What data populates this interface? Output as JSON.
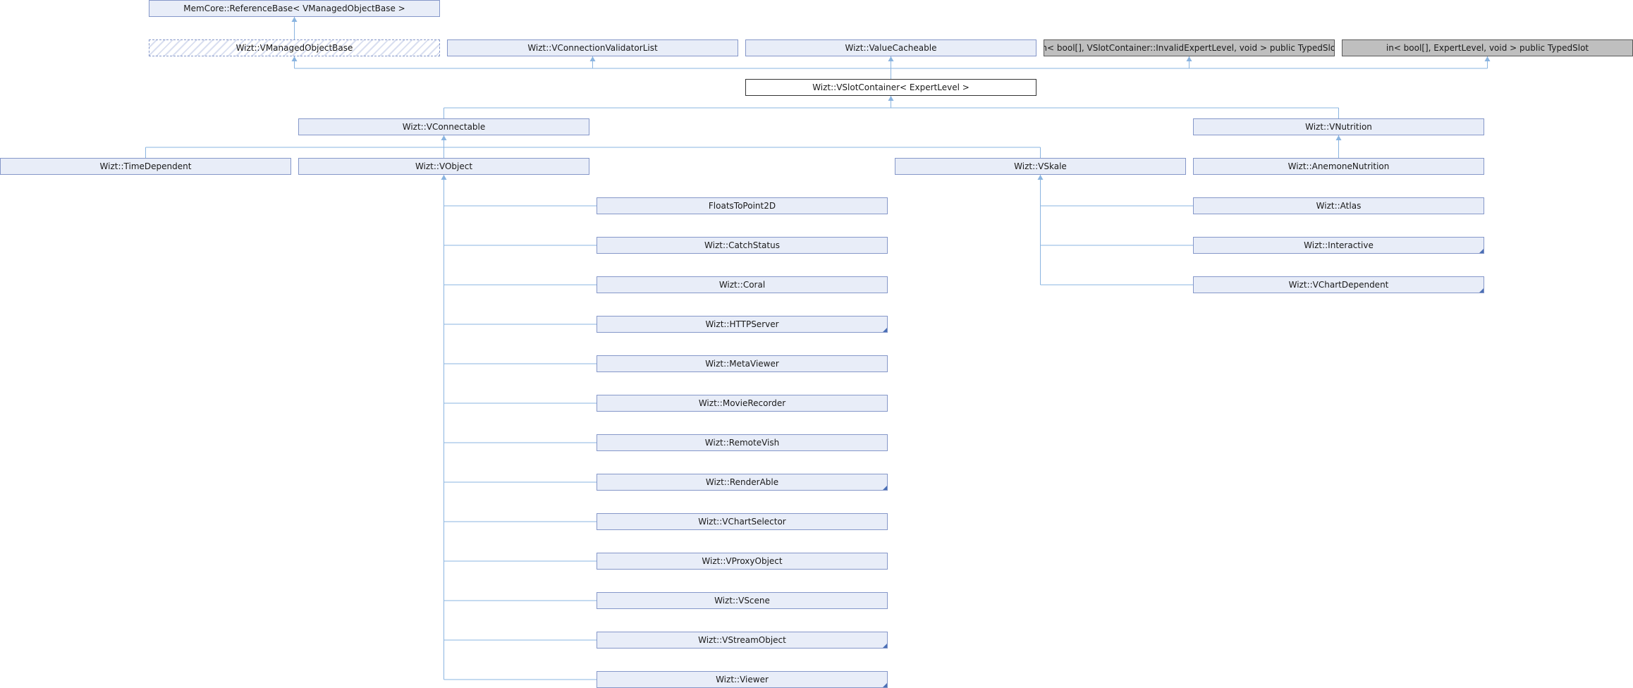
{
  "diagram": {
    "nodes": [
      {
        "id": "refbase",
        "label": "MemCore::ReferenceBase< VManagedObjectBase >"
      },
      {
        "id": "vmob",
        "label": "Wizt::VManagedObjectBase",
        "style": "hatched"
      },
      {
        "id": "vcvl",
        "label": "Wizt::VConnectionValidatorList"
      },
      {
        "id": "vcache",
        "label": "Wizt::ValueCacheable"
      },
      {
        "id": "slot1",
        "label": "in< bool[], VSlotContainer::InvalidExpertLevel, void > public TypedSlot",
        "style": "external"
      },
      {
        "id": "slot2",
        "label": "in< bool[], ExpertLevel, void > public TypedSlot",
        "style": "external"
      },
      {
        "id": "vslot",
        "label": "Wizt::VSlotContainer< ExpertLevel >",
        "style": "current"
      },
      {
        "id": "vconn",
        "label": "Wizt::VConnectable"
      },
      {
        "id": "vnutr",
        "label": "Wizt::VNutrition"
      },
      {
        "id": "timedep",
        "label": "Wizt::TimeDependent"
      },
      {
        "id": "vobject",
        "label": "Wizt::VObject"
      },
      {
        "id": "vskale",
        "label": "Wizt::VSkale"
      },
      {
        "id": "anemone",
        "label": "Wizt::AnemoneNutrition"
      },
      {
        "id": "floats",
        "label": "FloatsToPoint2D"
      },
      {
        "id": "catch",
        "label": "Wizt::CatchStatus"
      },
      {
        "id": "coral",
        "label": "Wizt::Coral"
      },
      {
        "id": "http",
        "label": "Wizt::HTTPServer",
        "truncated": true
      },
      {
        "id": "meta",
        "label": "Wizt::MetaViewer"
      },
      {
        "id": "movie",
        "label": "Wizt::MovieRecorder"
      },
      {
        "id": "remote",
        "label": "Wizt::RemoteVish"
      },
      {
        "id": "render",
        "label": "Wizt::RenderAble",
        "truncated": true
      },
      {
        "id": "chartsel",
        "label": "Wizt::VChartSelector"
      },
      {
        "id": "proxy",
        "label": "Wizt::VProxyObject"
      },
      {
        "id": "scene",
        "label": "Wizt::VScene"
      },
      {
        "id": "stream",
        "label": "Wizt::VStreamObject",
        "truncated": true
      },
      {
        "id": "viewer",
        "label": "Wizt::Viewer",
        "truncated": true
      },
      {
        "id": "atlas",
        "label": "Wizt::Atlas"
      },
      {
        "id": "interactive",
        "label": "Wizt::Interactive",
        "truncated": true
      },
      {
        "id": "chartdep",
        "label": "Wizt::VChartDependent",
        "truncated": true
      }
    ],
    "edges": [
      {
        "from": "vmob",
        "to": "refbase"
      },
      {
        "from": "vslot",
        "to": "vmob"
      },
      {
        "from": "vslot",
        "to": "vcvl"
      },
      {
        "from": "vslot",
        "to": "vcache"
      },
      {
        "from": "vslot",
        "to": "slot1"
      },
      {
        "from": "vslot",
        "to": "slot2"
      },
      {
        "from": "vconn",
        "to": "vslot"
      },
      {
        "from": "vnutr",
        "to": "vslot"
      },
      {
        "from": "timedep",
        "to": "vconn"
      },
      {
        "from": "vobject",
        "to": "vconn"
      },
      {
        "from": "vskale",
        "to": "vconn"
      },
      {
        "from": "anemone",
        "to": "vnutr"
      },
      {
        "from": "floats",
        "to": "vobject"
      },
      {
        "from": "catch",
        "to": "vobject"
      },
      {
        "from": "coral",
        "to": "vobject"
      },
      {
        "from": "http",
        "to": "vobject"
      },
      {
        "from": "meta",
        "to": "vobject"
      },
      {
        "from": "movie",
        "to": "vobject"
      },
      {
        "from": "remote",
        "to": "vobject"
      },
      {
        "from": "render",
        "to": "vobject"
      },
      {
        "from": "chartsel",
        "to": "vobject"
      },
      {
        "from": "proxy",
        "to": "vobject"
      },
      {
        "from": "scene",
        "to": "vobject"
      },
      {
        "from": "stream",
        "to": "vobject"
      },
      {
        "from": "viewer",
        "to": "vobject"
      },
      {
        "from": "atlas",
        "to": "vskale"
      },
      {
        "from": "interactive",
        "to": "vskale"
      },
      {
        "from": "chartdep",
        "to": "vskale"
      }
    ],
    "colors": {
      "edge": "#8ab4e0",
      "node_fill": "#e8edf8",
      "node_border": "#8597c9",
      "external_fill": "#bfbfbf"
    }
  }
}
